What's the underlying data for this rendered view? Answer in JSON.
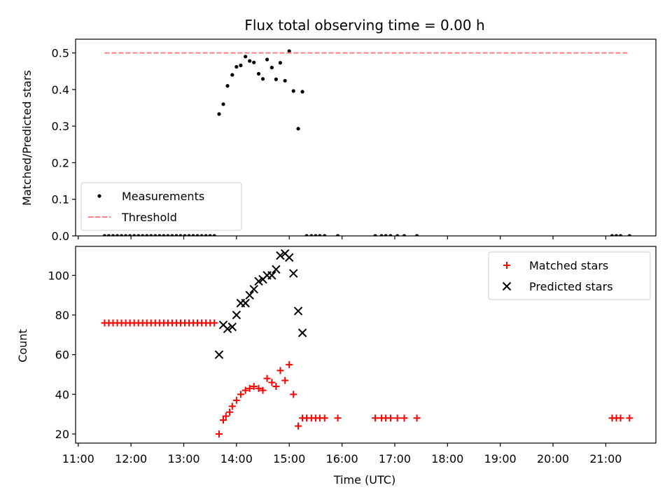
{
  "chart_data": [
    {
      "type": "scatter",
      "title": "Flux total observing time = 0.00 h",
      "xlabel": "",
      "ylabel": "Matched/Predicted stars",
      "xlim": [
        10.95,
        21.95
      ],
      "ylim": [
        0.0,
        0.5375
      ],
      "yticks": [
        0.0,
        0.1,
        0.2,
        0.3,
        0.4,
        0.5
      ],
      "ytick_labels": [
        "0.0",
        "0.1",
        "0.2",
        "0.3",
        "0.4",
        "0.5"
      ],
      "legend_position": "lower-left",
      "series": [
        {
          "name": "Measurements",
          "marker": "dot",
          "color": "#000000",
          "points": [
            [
              11.5,
              0
            ],
            [
              11.58,
              0
            ],
            [
              11.66,
              0
            ],
            [
              11.74,
              0
            ],
            [
              11.82,
              0
            ],
            [
              11.9,
              0
            ],
            [
              11.98,
              0
            ],
            [
              12.06,
              0
            ],
            [
              12.14,
              0
            ],
            [
              12.22,
              0
            ],
            [
              12.3,
              0
            ],
            [
              12.38,
              0
            ],
            [
              12.46,
              0
            ],
            [
              12.54,
              0
            ],
            [
              12.62,
              0
            ],
            [
              12.7,
              0
            ],
            [
              12.78,
              0
            ],
            [
              12.86,
              0
            ],
            [
              12.94,
              0
            ],
            [
              13.02,
              0
            ],
            [
              13.1,
              0
            ],
            [
              13.18,
              0
            ],
            [
              13.26,
              0
            ],
            [
              13.34,
              0
            ],
            [
              13.42,
              0
            ],
            [
              13.5,
              0
            ],
            [
              13.58,
              0
            ],
            [
              13.67,
              0.333
            ],
            [
              13.75,
              0.36
            ],
            [
              13.83,
              0.41
            ],
            [
              13.92,
              0.44
            ],
            [
              14.0,
              0.462
            ],
            [
              14.08,
              0.466
            ],
            [
              14.17,
              0.49
            ],
            [
              14.25,
              0.478
            ],
            [
              14.33,
              0.474
            ],
            [
              14.42,
              0.443
            ],
            [
              14.5,
              0.429
            ],
            [
              14.58,
              0.482
            ],
            [
              14.67,
              0.46
            ],
            [
              14.75,
              0.428
            ],
            [
              14.83,
              0.473
            ],
            [
              14.92,
              0.424
            ],
            [
              15.0,
              0.505
            ],
            [
              15.08,
              0.396
            ],
            [
              15.17,
              0.293
            ],
            [
              15.25,
              0.394
            ],
            [
              15.33,
              0
            ],
            [
              15.42,
              0
            ],
            [
              15.5,
              0
            ],
            [
              15.58,
              0
            ],
            [
              15.67,
              0
            ],
            [
              15.92,
              0
            ],
            [
              16.63,
              0
            ],
            [
              16.75,
              0
            ],
            [
              16.83,
              0
            ],
            [
              16.92,
              0
            ],
            [
              17.05,
              0
            ],
            [
              17.18,
              0
            ],
            [
              17.42,
              0
            ],
            [
              21.12,
              0
            ],
            [
              21.2,
              0
            ],
            [
              21.28,
              0
            ],
            [
              21.45,
              0
            ]
          ]
        },
        {
          "name": "Threshold",
          "marker": "dashed-line",
          "color": "#ff7f7f",
          "x": [
            11.5,
            21.45
          ],
          "values": [
            0.5,
            0.5
          ]
        }
      ]
    },
    {
      "type": "scatter",
      "title": "",
      "xlabel": "Time (UTC)",
      "ylabel": "Count",
      "xlim": [
        10.95,
        21.95
      ],
      "ylim": [
        15.4,
        114.6
      ],
      "yticks": [
        20,
        40,
        60,
        80,
        100
      ],
      "ytick_labels": [
        "20",
        "40",
        "60",
        "80",
        "100"
      ],
      "xticks": [
        11,
        12,
        13,
        14,
        15,
        16,
        17,
        18,
        19,
        20,
        21
      ],
      "xtick_labels": [
        "11:00",
        "12:00",
        "13:00",
        "14:00",
        "15:00",
        "16:00",
        "17:00",
        "18:00",
        "19:00",
        "20:00",
        "21:00"
      ],
      "legend_position": "top-right",
      "series": [
        {
          "name": "Matched stars",
          "marker": "plus",
          "color": "#ff0000",
          "points": [
            [
              11.5,
              76
            ],
            [
              11.58,
              76
            ],
            [
              11.66,
              76
            ],
            [
              11.74,
              76
            ],
            [
              11.82,
              76
            ],
            [
              11.9,
              76
            ],
            [
              11.98,
              76
            ],
            [
              12.06,
              76
            ],
            [
              12.14,
              76
            ],
            [
              12.22,
              76
            ],
            [
              12.3,
              76
            ],
            [
              12.38,
              76
            ],
            [
              12.46,
              76
            ],
            [
              12.54,
              76
            ],
            [
              12.62,
              76
            ],
            [
              12.7,
              76
            ],
            [
              12.78,
              76
            ],
            [
              12.86,
              76
            ],
            [
              12.94,
              76
            ],
            [
              13.02,
              76
            ],
            [
              13.1,
              76
            ],
            [
              13.18,
              76
            ],
            [
              13.26,
              76
            ],
            [
              13.34,
              76
            ],
            [
              13.42,
              76
            ],
            [
              13.5,
              76
            ],
            [
              13.58,
              76
            ],
            [
              13.67,
              20
            ],
            [
              13.75,
              27
            ],
            [
              13.8,
              29
            ],
            [
              13.87,
              31
            ],
            [
              13.92,
              34
            ],
            [
              14.0,
              37
            ],
            [
              14.08,
              40
            ],
            [
              14.17,
              42
            ],
            [
              14.25,
              43
            ],
            [
              14.33,
              44
            ],
            [
              14.42,
              43
            ],
            [
              14.5,
              42
            ],
            [
              14.58,
              48
            ],
            [
              14.67,
              46
            ],
            [
              14.75,
              44
            ],
            [
              14.83,
              52
            ],
            [
              14.92,
              47
            ],
            [
              15.0,
              55
            ],
            [
              15.08,
              40
            ],
            [
              15.17,
              24
            ],
            [
              15.25,
              28
            ],
            [
              15.33,
              28
            ],
            [
              15.42,
              28
            ],
            [
              15.5,
              28
            ],
            [
              15.58,
              28
            ],
            [
              15.67,
              28
            ],
            [
              15.92,
              28
            ],
            [
              16.63,
              28
            ],
            [
              16.75,
              28
            ],
            [
              16.83,
              28
            ],
            [
              16.92,
              28
            ],
            [
              17.05,
              28
            ],
            [
              17.18,
              28
            ],
            [
              17.42,
              28
            ],
            [
              21.12,
              28
            ],
            [
              21.2,
              28
            ],
            [
              21.28,
              28
            ],
            [
              21.45,
              28
            ]
          ]
        },
        {
          "name": "Predicted stars",
          "marker": "x",
          "color": "#000000",
          "points": [
            [
              13.67,
              60
            ],
            [
              13.75,
              75
            ],
            [
              13.83,
              73
            ],
            [
              13.92,
              74
            ],
            [
              14.0,
              80
            ],
            [
              14.08,
              86
            ],
            [
              14.17,
              86
            ],
            [
              14.25,
              90
            ],
            [
              14.33,
              93
            ],
            [
              14.42,
              97
            ],
            [
              14.5,
              98
            ],
            [
              14.58,
              100
            ],
            [
              14.67,
              100
            ],
            [
              14.75,
              103
            ],
            [
              14.83,
              110
            ],
            [
              14.92,
              111
            ],
            [
              15.0,
              109
            ],
            [
              15.08,
              101
            ],
            [
              15.17,
              82
            ],
            [
              15.25,
              71
            ]
          ]
        }
      ]
    }
  ]
}
